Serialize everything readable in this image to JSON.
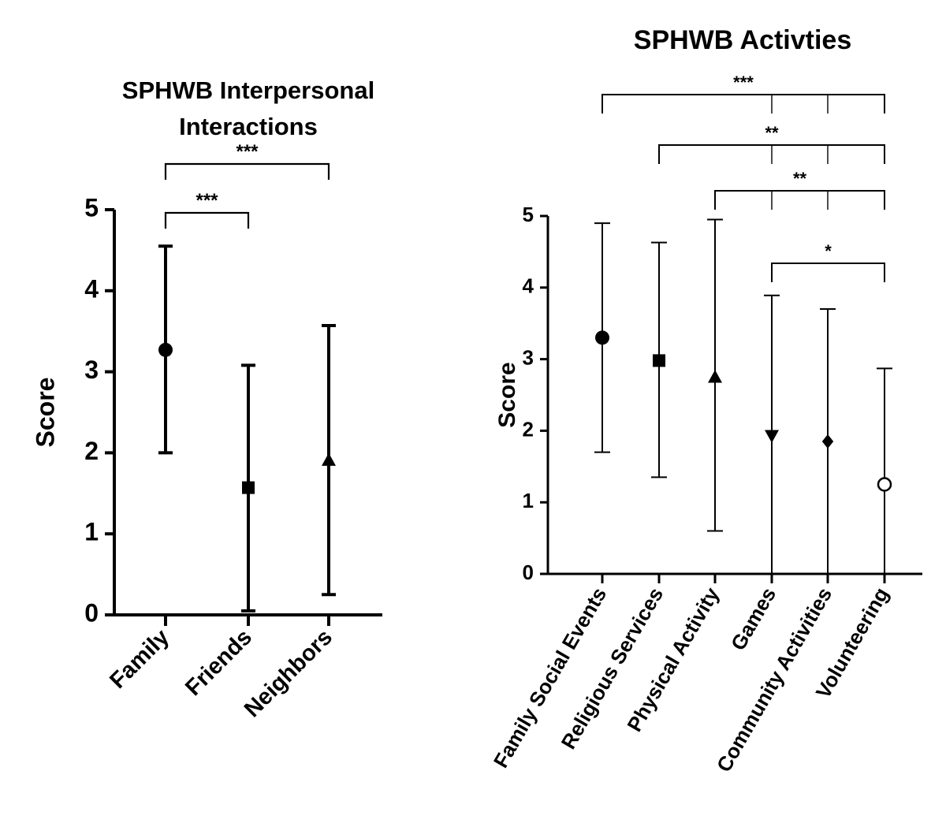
{
  "chart_data": [
    {
      "type": "scatter",
      "title_lines": [
        "SPHWB Interpersonal",
        "Interactions"
      ],
      "ylabel": "Score",
      "xlabel": "",
      "ylim": [
        0,
        5
      ],
      "yticks": [
        "0",
        "1",
        "2",
        "3",
        "4",
        "5"
      ],
      "categories": [
        "Family",
        "Friends",
        "Neighbors"
      ],
      "means": [
        3.27,
        1.57,
        1.91
      ],
      "lower": [
        2.0,
        0.05,
        0.25
      ],
      "upper": [
        4.55,
        3.08,
        3.57
      ],
      "markers": [
        "circle",
        "square",
        "triangle-up"
      ],
      "significance": [
        {
          "from": "Family",
          "to": "Friends",
          "label": "***"
        },
        {
          "from": "Family",
          "to": "Neighbors",
          "label": "***"
        }
      ]
    },
    {
      "type": "scatter",
      "title_lines": [
        "SPHWB Activties"
      ],
      "ylabel": "Score",
      "xlabel": "",
      "ylim": [
        0,
        5
      ],
      "yticks": [
        "0",
        "1",
        "2",
        "3",
        "4",
        "5"
      ],
      "categories": [
        "Family Social Events",
        "Religious Services",
        "Physical Activity",
        "Games",
        "Community Activities",
        "Volunteering"
      ],
      "means": [
        3.3,
        2.98,
        2.75,
        1.93,
        1.85,
        1.25
      ],
      "lower": [
        1.7,
        1.35,
        0.6,
        0.0,
        0.0,
        0.0
      ],
      "upper": [
        4.9,
        4.63,
        4.95,
        3.89,
        3.7,
        2.87
      ],
      "markers": [
        "circle",
        "square",
        "triangle-up",
        "triangle-down",
        "diamond",
        "circle-open"
      ],
      "significance": [
        {
          "from": "Family Social Events",
          "to": "Volunteering",
          "label": "***",
          "ticks": [
            "Games",
            "Community Activities"
          ]
        },
        {
          "from": "Religious Services",
          "to": "Volunteering",
          "label": "**",
          "ticks": [
            "Games",
            "Community Activities"
          ]
        },
        {
          "from": "Physical Activity",
          "to": "Volunteering",
          "label": "**",
          "ticks": [
            "Games",
            "Community Activities"
          ]
        },
        {
          "from": "Games",
          "to": "Volunteering",
          "label": "*",
          "ticks": []
        }
      ]
    }
  ]
}
